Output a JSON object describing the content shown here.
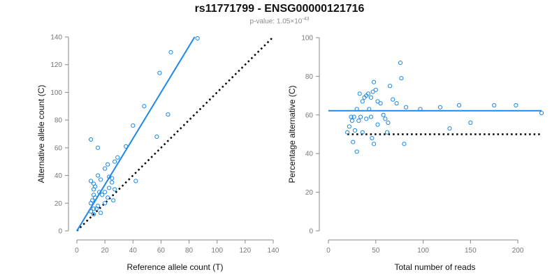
{
  "header": {
    "title": "rs11771799 - ENSG00000121716",
    "pvalue_prefix": "p-value: 1.05×10",
    "pvalue_exponent": "-43"
  },
  "colors": {
    "accent": "#1e88e5",
    "reference": "#000000",
    "axis": "#888888",
    "tick_text": "#777777"
  },
  "chart_data": [
    {
      "type": "scatter",
      "title": "",
      "xlabel": "Reference allele count (T)",
      "ylabel": "Alternative allele count (C)",
      "xlim": [
        0,
        140
      ],
      "ylim": [
        0,
        140
      ],
      "xticks": [
        0,
        20,
        40,
        60,
        80,
        100,
        120,
        140
      ],
      "yticks": [
        0,
        20,
        40,
        60,
        80,
        100,
        120,
        140
      ],
      "grid": false,
      "series": [
        {
          "points": [
            [
              10,
              66
            ],
            [
              15,
              60
            ],
            [
              40,
              76
            ],
            [
              48,
              90
            ],
            [
              59,
              114
            ],
            [
              67,
              129
            ],
            [
              86,
              139
            ],
            [
              57,
              68
            ],
            [
              65,
              84
            ],
            [
              35,
              61
            ],
            [
              29,
              53
            ],
            [
              27,
              50
            ],
            [
              20,
              45
            ],
            [
              22,
              48
            ],
            [
              42,
              36
            ],
            [
              15,
              40
            ],
            [
              10,
              36
            ],
            [
              12,
              34
            ],
            [
              12,
              30
            ],
            [
              13,
              32
            ],
            [
              17,
              37
            ],
            [
              23,
              39
            ],
            [
              25,
              35
            ],
            [
              27,
              30
            ],
            [
              26,
              22
            ],
            [
              22,
              24
            ],
            [
              20,
              28
            ],
            [
              18,
              26
            ],
            [
              13,
              24
            ],
            [
              10,
              20
            ],
            [
              12,
              16
            ],
            [
              14,
              16
            ],
            [
              10,
              14
            ],
            [
              12,
              12
            ],
            [
              17,
              13
            ],
            [
              15,
              18
            ],
            [
              20,
              20
            ],
            [
              11,
              22
            ],
            [
              12,
              26
            ],
            [
              16,
              28
            ],
            [
              23,
              31
            ],
            [
              25,
              38
            ]
          ],
          "marker": "open-circle"
        }
      ],
      "fit_line": {
        "from": [
          0,
          0
        ],
        "to": [
          84,
          140
        ]
      },
      "reference_line": {
        "from": [
          0,
          0
        ],
        "to": [
          140,
          140
        ],
        "style": "dotted"
      }
    },
    {
      "type": "scatter",
      "title": "",
      "xlabel": "Total number of reads",
      "ylabel": "Percentage alternative (C)",
      "xlim": [
        0,
        225
      ],
      "ylim": [
        0,
        100
      ],
      "xticks": [
        0,
        50,
        100,
        150,
        200
      ],
      "yticks": [
        0,
        20,
        40,
        60,
        80,
        100
      ],
      "grid": false,
      "series": [
        {
          "points": [
            [
              25,
              57
            ],
            [
              27,
              59
            ],
            [
              30,
              63
            ],
            [
              33,
              71
            ],
            [
              36,
              67
            ],
            [
              38,
              69
            ],
            [
              40,
              70
            ],
            [
              42,
              71
            ],
            [
              45,
              69
            ],
            [
              47,
              72
            ],
            [
              48,
              77
            ],
            [
              50,
              73
            ],
            [
              46,
              48
            ],
            [
              48,
              45
            ],
            [
              52,
              67
            ],
            [
              55,
              66
            ],
            [
              58,
              60
            ],
            [
              60,
              58
            ],
            [
              62,
              51
            ],
            [
              63,
              56
            ],
            [
              65,
              75
            ],
            [
              68,
              68
            ],
            [
              72,
              66
            ],
            [
              76,
              87
            ],
            [
              77,
              79
            ],
            [
              80,
              45
            ],
            [
              82,
              64
            ],
            [
              97,
              63
            ],
            [
              118,
              64
            ],
            [
              128,
              53
            ],
            [
              138,
              65
            ],
            [
              150,
              56
            ],
            [
              175,
              65
            ],
            [
              198,
              65
            ],
            [
              225,
              61
            ],
            [
              20,
              51
            ],
            [
              22,
              54
            ],
            [
              24,
              59
            ],
            [
              26,
              46
            ],
            [
              28,
              52
            ],
            [
              30,
              41
            ],
            [
              32,
              57
            ],
            [
              34,
              59
            ],
            [
              36,
              51
            ],
            [
              40,
              58
            ],
            [
              43,
              63
            ],
            [
              45,
              59
            ],
            [
              52,
              55
            ]
          ],
          "marker": "open-circle"
        }
      ],
      "fit_line": {
        "y": 62.2
      },
      "reference_line": {
        "y": 50,
        "style": "dotted"
      }
    }
  ]
}
